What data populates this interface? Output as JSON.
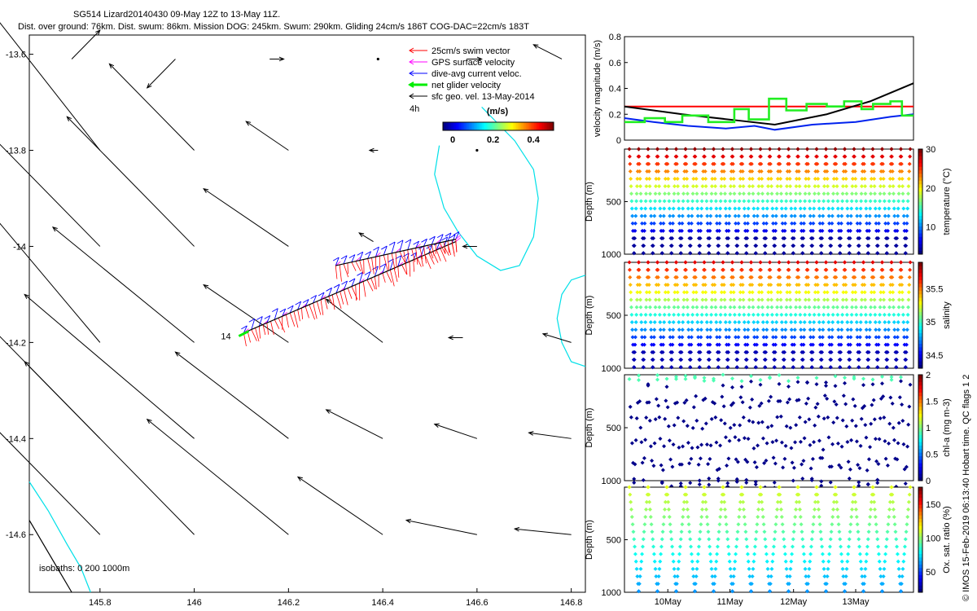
{
  "header": {
    "title": "SG514 Lizard20140430 09-May 12Z to 13-May 11Z.",
    "subtitle": "Dist. over ground: 76km. Dist. swum: 86km. Mission DOG: 245km. Swum: 290km. Gliding 24cm/s 186T COG-DAC=22cm/s 183T"
  },
  "colors": {
    "swim": "#ff0000",
    "gps": "#ff00ff",
    "dac": "#0000ff",
    "net": "#00ee00",
    "sfc": "#000000",
    "isobath": "#00e0e8",
    "speed_red": "#ff0000",
    "speed_black": "#000000",
    "speed_green": "#22ee22",
    "speed_blue": "#0022ee"
  },
  "chart_data": [
    {
      "type": "scatter",
      "name": "map",
      "xlim": [
        145.65,
        146.83
      ],
      "ylim": [
        -14.72,
        -13.56
      ],
      "xticks": [
        "145.8",
        "146",
        "146.2",
        "146.4",
        "146.6",
        "146.8"
      ],
      "xtick_values": [
        145.8,
        146.0,
        146.2,
        146.4,
        146.6,
        146.8
      ],
      "yticks": [
        "-13.6",
        "-13.8",
        "-14",
        "-14.2",
        "-14.4",
        "-14.6"
      ],
      "ytick_values": [
        -13.6,
        -13.8,
        -14.0,
        -14.2,
        -14.4,
        -14.6
      ],
      "legend": {
        "placement": "top-right",
        "entries": [
          "25cm/s swim vector",
          "GPS surface velocity",
          "dive-avg current veloc.",
          "net glider velocity",
          "sfc geo. vel. 13-May-2014"
        ],
        "scale_label": "4h"
      },
      "colorbar": {
        "label": "(m/s)",
        "ticks": [
          "0",
          "0.2",
          "0.4"
        ],
        "tick_values": [
          0,
          0.2,
          0.4
        ],
        "range": [
          0,
          0.5
        ]
      },
      "isobaths_label": "isobaths: 0   200  1000m",
      "track_label": "14",
      "track_start": [
        146.105,
        -14.18
      ],
      "track_end": [
        146.555,
        -13.99
      ],
      "track_loop_start": [
        146.3,
        -14.04
      ],
      "sfc_vectors": [
        {
          "lon": 145.74,
          "lat": -13.61,
          "u": 0.01,
          "v": 0.01
        },
        {
          "lon": 145.96,
          "lat": -13.61,
          "u": -0.01,
          "v": -0.01
        },
        {
          "lon": 146.16,
          "lat": -13.61,
          "u": 0.005,
          "v": 0.0
        },
        {
          "lon": 146.39,
          "lat": -13.61,
          "u": 0.0,
          "v": 0.0
        },
        {
          "lon": 146.58,
          "lat": -13.61,
          "u": 0.005,
          "v": 0.0
        },
        {
          "lon": 146.78,
          "lat": -13.61,
          "u": -0.01,
          "v": 0.005
        },
        {
          "lon": 145.8,
          "lat": -13.8,
          "u": -0.04,
          "v": 0.05
        },
        {
          "lon": 146.0,
          "lat": -13.8,
          "u": -0.03,
          "v": 0.03
        },
        {
          "lon": 146.2,
          "lat": -13.8,
          "u": -0.015,
          "v": 0.01
        },
        {
          "lon": 146.39,
          "lat": -13.8,
          "u": -0.003,
          "v": 0.0
        },
        {
          "lon": 146.6,
          "lat": -13.8,
          "u": 0.0,
          "v": 0.0
        },
        {
          "lon": 145.8,
          "lat": -14.0,
          "u": -0.05,
          "v": 0.05
        },
        {
          "lon": 146.0,
          "lat": -14.0,
          "u": -0.045,
          "v": 0.045
        },
        {
          "lon": 146.2,
          "lat": -14.0,
          "u": -0.03,
          "v": 0.02
        },
        {
          "lon": 146.38,
          "lat": -13.99,
          "u": -0.005,
          "v": 0.003
        },
        {
          "lon": 146.6,
          "lat": -14.0,
          "u": -0.005,
          "v": 0.0
        },
        {
          "lon": 145.8,
          "lat": -14.2,
          "u": -0.06,
          "v": 0.07
        },
        {
          "lon": 146.0,
          "lat": -14.2,
          "u": -0.05,
          "v": 0.04
        },
        {
          "lon": 146.2,
          "lat": -14.2,
          "u": -0.03,
          "v": 0.02
        },
        {
          "lon": 146.4,
          "lat": -14.2,
          "u": -0.02,
          "v": 0.015
        },
        {
          "lon": 146.57,
          "lat": -14.19,
          "u": -0.005,
          "v": 0.0
        },
        {
          "lon": 146.8,
          "lat": -14.2,
          "u": -0.01,
          "v": 0.003
        },
        {
          "lon": 145.8,
          "lat": -14.4,
          "u": -0.07,
          "v": 0.07
        },
        {
          "lon": 146.0,
          "lat": -14.4,
          "u": -0.06,
          "v": 0.05
        },
        {
          "lon": 146.2,
          "lat": -14.4,
          "u": -0.04,
          "v": 0.03
        },
        {
          "lon": 146.4,
          "lat": -14.4,
          "u": -0.02,
          "v": 0.01
        },
        {
          "lon": 146.6,
          "lat": -14.4,
          "u": -0.015,
          "v": 0.005
        },
        {
          "lon": 146.8,
          "lat": -14.4,
          "u": -0.015,
          "v": 0.002
        },
        {
          "lon": 145.8,
          "lat": -14.6,
          "u": -0.07,
          "v": 0.07
        },
        {
          "lon": 146.0,
          "lat": -14.6,
          "u": -0.06,
          "v": 0.06
        },
        {
          "lon": 146.2,
          "lat": -14.6,
          "u": -0.05,
          "v": 0.04
        },
        {
          "lon": 146.4,
          "lat": -14.6,
          "u": -0.03,
          "v": 0.02
        },
        {
          "lon": 146.6,
          "lat": -14.6,
          "u": -0.025,
          "v": 0.005
        },
        {
          "lon": 146.8,
          "lat": -14.6,
          "u": -0.02,
          "v": 0.002
        }
      ],
      "isobath_200": [
        [
          146.52,
          -13.79
        ],
        [
          146.51,
          -13.85
        ],
        [
          146.53,
          -13.92
        ],
        [
          146.56,
          -13.97
        ],
        [
          146.6,
          -14.02
        ],
        [
          146.65,
          -14.05
        ],
        [
          146.69,
          -14.04
        ],
        [
          146.72,
          -13.98
        ],
        [
          146.73,
          -13.9
        ],
        [
          146.72,
          -13.84
        ],
        [
          146.68,
          -13.78
        ],
        [
          146.64,
          -13.74
        ],
        [
          146.61,
          -13.71
        ]
      ],
      "isobath_200_b": [
        [
          146.83,
          -14.06
        ],
        [
          146.8,
          -14.07
        ],
        [
          146.78,
          -14.1
        ],
        [
          146.77,
          -14.15
        ],
        [
          146.78,
          -14.2
        ],
        [
          146.8,
          -14.24
        ],
        [
          146.83,
          -14.25
        ]
      ],
      "isobath_1000": [
        [
          145.65,
          -14.49
        ],
        [
          145.69,
          -14.55
        ],
        [
          145.73,
          -14.62
        ],
        [
          145.76,
          -14.67
        ],
        [
          145.78,
          -14.72
        ]
      ],
      "isobath_0": [
        [
          145.65,
          -14.57
        ],
        [
          145.68,
          -14.62
        ],
        [
          145.71,
          -14.67
        ],
        [
          145.74,
          -14.72
        ]
      ]
    },
    {
      "type": "line",
      "name": "velocity",
      "ylabel": "velocity magnitude (m/s)",
      "ylim": [
        0,
        0.8
      ],
      "yticks": [
        "0",
        "0.2",
        "0.4",
        "0.6",
        "0.8"
      ],
      "ytick_values": [
        0,
        0.2,
        0.4,
        0.6,
        0.8
      ],
      "xlim": [
        0,
        100
      ],
      "series": [
        {
          "color": "red",
          "x": [
            0,
            100
          ],
          "y": [
            0.26,
            0.26
          ]
        },
        {
          "color": "black",
          "x": [
            0,
            20,
            40,
            52,
            70,
            85,
            100
          ],
          "y": [
            0.26,
            0.2,
            0.15,
            0.12,
            0.2,
            0.3,
            0.44
          ]
        },
        {
          "color": "blue",
          "x": [
            0,
            10,
            22,
            35,
            45,
            52,
            65,
            80,
            92,
            100
          ],
          "y": [
            0.17,
            0.14,
            0.11,
            0.09,
            0.11,
            0.08,
            0.12,
            0.14,
            0.18,
            0.2
          ]
        },
        {
          "color": "green",
          "x": [
            0,
            7,
            7,
            14,
            14,
            20,
            20,
            29,
            29,
            38,
            38,
            43,
            43,
            50,
            50,
            56,
            56,
            63,
            63,
            70,
            70,
            76,
            76,
            82,
            82,
            86,
            86,
            92,
            92,
            96,
            96,
            100
          ],
          "y": [
            0.14,
            0.14,
            0.17,
            0.17,
            0.14,
            0.14,
            0.19,
            0.19,
            0.14,
            0.14,
            0.24,
            0.24,
            0.16,
            0.16,
            0.32,
            0.32,
            0.23,
            0.23,
            0.28,
            0.28,
            0.26,
            0.26,
            0.3,
            0.3,
            0.24,
            0.24,
            0.28,
            0.28,
            0.3,
            0.3,
            0.19,
            0.19
          ]
        }
      ]
    },
    {
      "type": "scatter",
      "name": "temperature",
      "ylabel": "Depth (m)",
      "colorbar_label": "temperature (°C)",
      "ylim": [
        0,
        1000
      ],
      "yticks": [
        "500",
        "1000"
      ],
      "ytick_values": [
        500,
        1000
      ],
      "colorbar_ticks": [
        "10",
        "20",
        "30"
      ],
      "colorbar_tick_values": [
        10,
        20,
        30
      ],
      "crange": [
        3,
        30
      ],
      "dives": 30,
      "max_depth": 990
    },
    {
      "type": "scatter",
      "name": "salinity",
      "ylabel": "Depth (m)",
      "colorbar_label": "salinity",
      "ylim": [
        0,
        1000
      ],
      "yticks": [
        "500",
        "1000"
      ],
      "ytick_values": [
        500,
        1000
      ],
      "colorbar_ticks": [
        "34.5",
        "35",
        "35.5"
      ],
      "colorbar_tick_values": [
        34.5,
        35,
        35.5
      ],
      "crange": [
        34.3,
        35.9
      ],
      "dives": 30,
      "max_depth": 990
    },
    {
      "type": "scatter",
      "name": "chlorophyll",
      "ylabel": "Depth (m)",
      "colorbar_label": "chl-a (mg m-3)",
      "ylim": [
        0,
        1000
      ],
      "yticks": [
        "500",
        "1000"
      ],
      "ytick_values": [
        500,
        1000
      ],
      "colorbar_ticks": [
        "0",
        "0.5",
        "1",
        "1.5",
        "2"
      ],
      "colorbar_tick_values": [
        0,
        0.5,
        1,
        1.5,
        2
      ],
      "crange": [
        0,
        2
      ],
      "dives": 30,
      "max_depth": 980
    },
    {
      "type": "scatter",
      "name": "oxygen",
      "ylabel": "Depth (m)",
      "colorbar_label": "Ox. sat. ratio (%)",
      "ylim": [
        0,
        1000
      ],
      "yticks": [
        "500",
        "1000"
      ],
      "ytick_values": [
        500,
        1000
      ],
      "xticks": [
        "10May",
        "11May",
        "12May",
        "13May"
      ],
      "xtick_positions": [
        0.15,
        0.365,
        0.585,
        0.8
      ],
      "colorbar_ticks": [
        "50",
        "100",
        "150"
      ],
      "colorbar_tick_values": [
        50,
        100,
        150
      ],
      "crange": [
        20,
        175
      ],
      "dives": 15,
      "max_depth": 990
    }
  ],
  "side_note": "© IMOS 15-Feb-2019 06:13:40 Hobart time. QC flags 1  2"
}
